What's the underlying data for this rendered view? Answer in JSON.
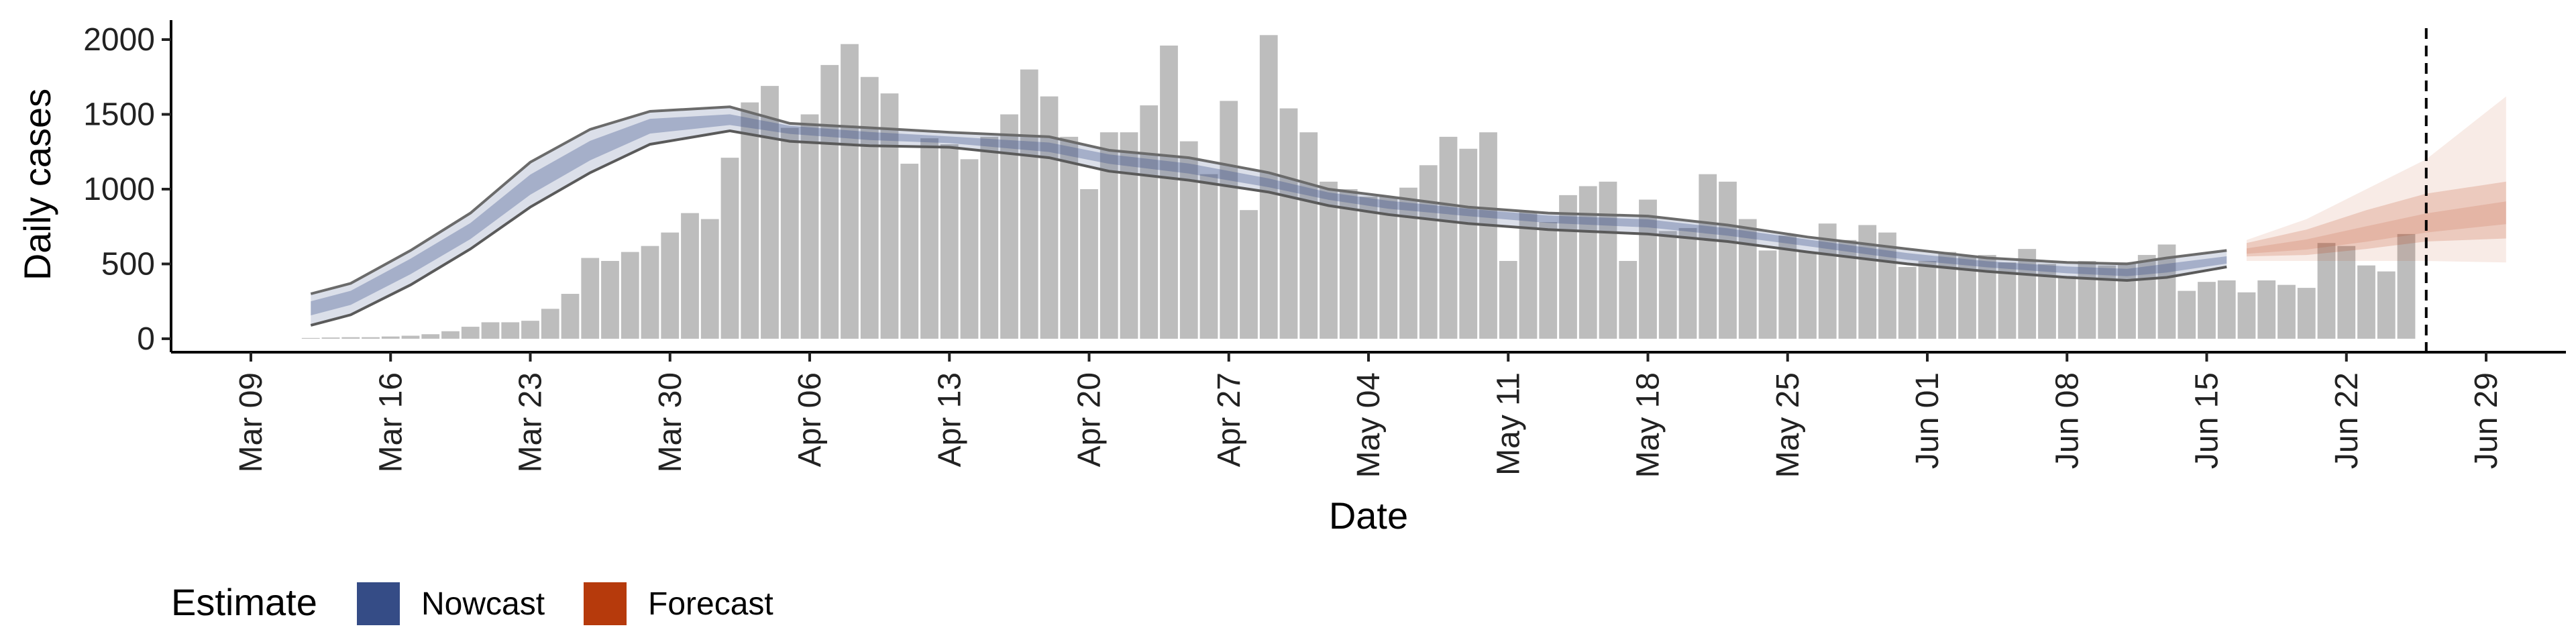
{
  "chart_data": {
    "type": "bar",
    "xlabel": "Date",
    "ylabel": "Daily cases",
    "date_start": "2020-03-12",
    "x_ticks": [
      "Mar 09",
      "Mar 16",
      "Mar 23",
      "Mar 30",
      "Apr 06",
      "Apr 13",
      "Apr 20",
      "Apr 27",
      "May 04",
      "May 11",
      "May 18",
      "May 25",
      "Jun 01",
      "Jun 08",
      "Jun 15",
      "Jun 22",
      "Jun 29"
    ],
    "y_ticks": [
      0,
      500,
      1000,
      1500,
      2000
    ],
    "ylim": [
      -90,
      2130
    ],
    "xlim": [
      "2020-03-05",
      "2020-07-03"
    ],
    "vertical_line": "2020-06-26",
    "legend": {
      "title": "Estimate",
      "placement": "bottom-left",
      "entries": [
        {
          "label": "Nowcast",
          "color": "#354c86"
        },
        {
          "label": "Forecast",
          "color": "#b63a0c"
        }
      ]
    },
    "bars": {
      "color": "#bdbdbd",
      "values": [
        5,
        8,
        10,
        10,
        15,
        20,
        30,
        50,
        80,
        110,
        110,
        120,
        200,
        300,
        540,
        520,
        580,
        620,
        710,
        840,
        800,
        1210,
        1580,
        1690,
        1410,
        1500,
        1830,
        1970,
        1750,
        1640,
        1170,
        1340,
        1300,
        1200,
        1350,
        1500,
        1800,
        1620,
        1350,
        1000,
        1380,
        1380,
        1560,
        1960,
        1320,
        1100,
        1590,
        860,
        2030,
        1540,
        1380,
        1050,
        1000,
        950,
        950,
        1010,
        1160,
        1350,
        1270,
        1380,
        520,
        850,
        780,
        960,
        1020,
        1050,
        520,
        930,
        720,
        740,
        1100,
        1050,
        800,
        590,
        690,
        580,
        770,
        660,
        760,
        710,
        480,
        520,
        580,
        550,
        560,
        510,
        600,
        500,
        420,
        520,
        490,
        510,
        560,
        630,
        320,
        380,
        390,
        310,
        390,
        360,
        340,
        640,
        620,
        490,
        450,
        700
      ]
    },
    "nowcast": {
      "color": "#354c86",
      "dates": [
        "2020-03-12",
        "2020-03-14",
        "2020-03-17",
        "2020-03-20",
        "2020-03-23",
        "2020-03-26",
        "2020-03-29",
        "2020-04-02",
        "2020-04-05",
        "2020-04-09",
        "2020-04-13",
        "2020-04-18",
        "2020-04-21",
        "2020-04-25",
        "2020-04-29",
        "2020-05-02",
        "2020-05-05",
        "2020-05-09",
        "2020-05-13",
        "2020-05-18",
        "2020-05-22",
        "2020-05-26",
        "2020-05-31",
        "2020-06-04",
        "2020-06-08",
        "2020-06-11",
        "2020-06-13",
        "2020-06-16"
      ],
      "median": [
        210,
        280,
        490,
        720,
        1030,
        1260,
        1430,
        1460,
        1410,
        1360,
        1330,
        1280,
        1210,
        1140,
        1040,
        960,
        900,
        860,
        810,
        780,
        720,
        650,
        550,
        500,
        460,
        440,
        470,
        520
      ],
      "lower90": [
        90,
        160,
        360,
        600,
        880,
        1110,
        1300,
        1390,
        1320,
        1290,
        1280,
        1210,
        1120,
        1060,
        980,
        890,
        830,
        770,
        730,
        700,
        650,
        580,
        500,
        450,
        410,
        390,
        410,
        480
      ],
      "upper90": [
        300,
        370,
        590,
        840,
        1180,
        1400,
        1520,
        1550,
        1440,
        1410,
        1380,
        1350,
        1260,
        1210,
        1110,
        1000,
        950,
        880,
        840,
        820,
        760,
        680,
        600,
        540,
        510,
        500,
        540,
        590
      ]
    },
    "forecast": {
      "color": "#b63a0c",
      "dates": [
        "2020-06-17",
        "2020-06-20",
        "2020-06-23",
        "2020-06-26",
        "2020-06-30"
      ],
      "median": [
        580,
        620,
        680,
        750,
        830
      ],
      "lower50": [
        550,
        560,
        600,
        650,
        670
      ],
      "upper50": [
        640,
        730,
        860,
        970,
        1050
      ],
      "lower90": [
        520,
        520,
        520,
        520,
        510
      ],
      "upper90": [
        660,
        800,
        1000,
        1200,
        1620
      ]
    }
  }
}
